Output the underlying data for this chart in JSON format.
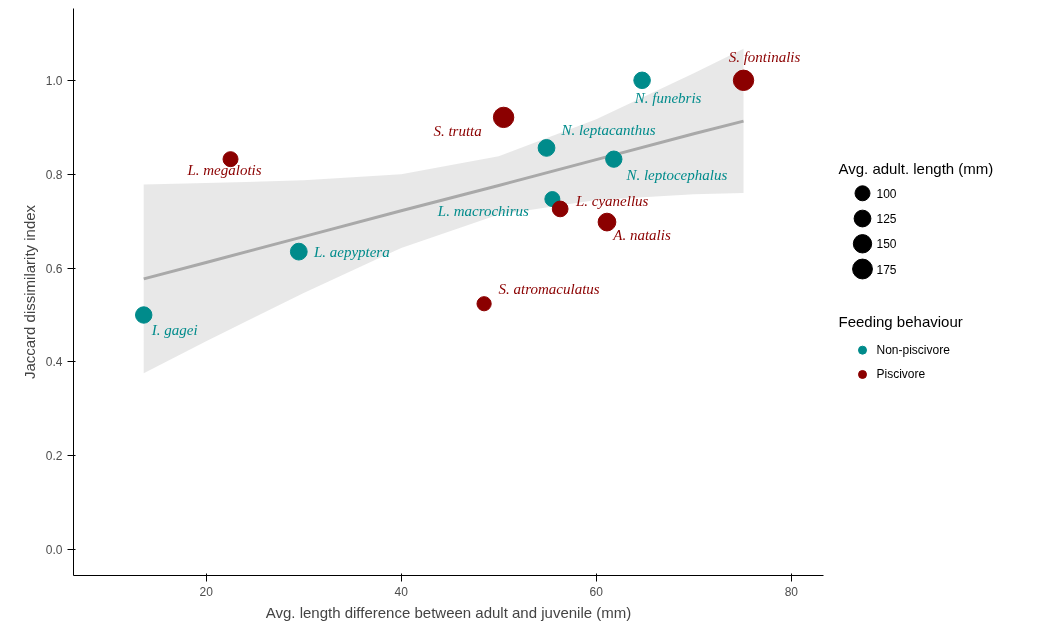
{
  "chart_data": {
    "type": "bubble",
    "xlabel": "Avg. length difference between adult and juvenile (mm)",
    "ylabel": "Jaccard dissimilarity index",
    "legend_title": "Feeding behaviour",
    "legend": "right",
    "grid": false,
    "xlim": [
      6.4,
      83.3
    ],
    "ylim": [
      -0.055,
      1.153
    ],
    "xticks": [
      20,
      40,
      60,
      80
    ],
    "yticks": [
      {
        "value": 0,
        "label": "0.0"
      },
      {
        "value": 0.2,
        "label": "0.2"
      },
      {
        "value": 0.4,
        "label": "0.4"
      },
      {
        "value": 0.6,
        "label": "0.6"
      },
      {
        "value": 0.8,
        "label": "0.8"
      },
      {
        "value": 1,
        "label": "1.0"
      }
    ],
    "size_legend": [
      100,
      125,
      150,
      175
    ],
    "series": [
      {
        "name": "Non-piscivore",
        "color": "#008b8b",
        "x": [
          13.6,
          29.5,
          54.9,
          55.5,
          61.8,
          64.7
        ],
        "values": [
          0.5,
          0.635,
          0.856,
          0.747,
          0.832,
          1.0
        ],
        "sizes": [
          120,
          125,
          125,
          100,
          118,
          122
        ]
      },
      {
        "name": "Piscivore",
        "color": "#8b0000",
        "x": [
          22.5,
          48.5,
          50.5,
          56.3,
          61.1,
          75.1
        ],
        "values": [
          0.832,
          0.524,
          0.921,
          0.726,
          0.698,
          1.0
        ],
        "sizes": [
          100,
          90,
          185,
          110,
          140,
          185
        ]
      },
      {
        "type": "line",
        "color": "#a9a9a9",
        "x": [
          13.6,
          20,
          30,
          40,
          50,
          60,
          70,
          75.1
        ],
        "values": [
          0.577,
          0.612,
          0.667,
          0.722,
          0.776,
          0.831,
          0.886,
          0.913
        ],
        "lower": [
          0.376,
          0.444,
          0.547,
          0.643,
          0.714,
          0.745,
          0.757,
          0.76
        ],
        "upper": [
          0.778,
          0.781,
          0.787,
          0.8,
          0.838,
          0.917,
          1.015,
          1.067
        ]
      }
    ],
    "annotations": [
      "Avg. adult. length (mm)",
      {
        "text": "I. gagei",
        "x": 13.6,
        "y": 0.5
      },
      {
        "text": "L. aepyptera",
        "x": 29.5,
        "y": 0.635
      },
      {
        "text": "L. megalotis",
        "x": 22.5,
        "y": 0.832
      },
      {
        "text": "S. atromaculatus",
        "x": 48.5,
        "y": 0.524
      },
      {
        "text": "S. trutta",
        "x": 50.5,
        "y": 0.921
      },
      {
        "text": "N. leptacanthus",
        "x": 54.9,
        "y": 0.856
      },
      {
        "text": "L. macrochirus",
        "x": 55.5,
        "y": 0.747
      },
      {
        "text": "L. cyanellus",
        "x": 56.3,
        "y": 0.726
      },
      {
        "text": "N. leptocephalus",
        "x": 61.8,
        "y": 0.832
      },
      {
        "text": "A. natalis",
        "x": 61.1,
        "y": 0.698
      },
      {
        "text": "N. funebris",
        "x": 64.7,
        "y": 1.0
      },
      {
        "text": "S. fontinalis",
        "x": 75.1,
        "y": 1.0
      }
    ]
  }
}
